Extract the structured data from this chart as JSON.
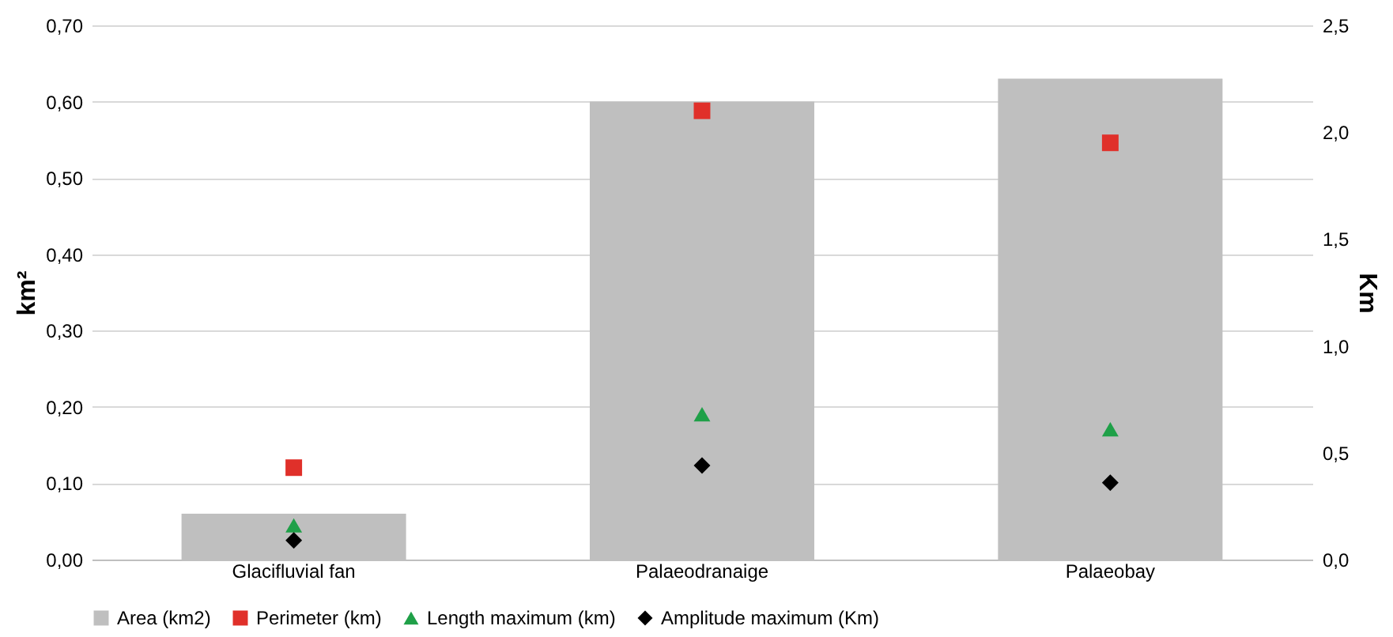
{
  "chart_data": {
    "type": "bar",
    "categories": [
      "Glacifluvial fan",
      "Palaeodranaige",
      "Palaeobay"
    ],
    "ylabel": "km²",
    "y2label": "Km",
    "series": [
      {
        "name": "Area (km2)",
        "type": "bar",
        "color": "#bfbfbf",
        "values": [
          0.06,
          0.6,
          0.63
        ]
      },
      {
        "name": "Perimeter (km)",
        "type": "scatter",
        "axis": "y2",
        "marker": "square",
        "color": "#e0302a",
        "values": [
          0.43,
          2.1,
          1.95
        ]
      },
      {
        "name": "Length maximum (km)",
        "type": "scatter",
        "axis": "y2",
        "marker": "triangle",
        "color": "#1fa048",
        "values": [
          0.16,
          0.68,
          0.61
        ]
      },
      {
        "name": "Amplitude maximum (Km)",
        "type": "scatter",
        "axis": "y2",
        "marker": "diamond",
        "color": "#000000",
        "values": [
          0.09,
          0.44,
          0.36
        ]
      }
    ],
    "ylim": [
      0,
      0.7
    ],
    "yticks": [
      {
        "value": 0,
        "label": "0,00"
      },
      {
        "value": 0.1,
        "label": "0,10"
      },
      {
        "value": 0.2,
        "label": "0,20"
      },
      {
        "value": 0.3,
        "label": "0,30"
      },
      {
        "value": 0.4,
        "label": "0,40"
      },
      {
        "value": 0.5,
        "label": "0,50"
      },
      {
        "value": 0.6,
        "label": "0,60"
      },
      {
        "value": 0.7,
        "label": "0,70"
      }
    ],
    "y2lim": [
      0,
      2.5
    ],
    "y2ticks": [
      {
        "value": 0,
        "label": "0,0"
      },
      {
        "value": 0.5,
        "label": "0,5"
      },
      {
        "value": 1,
        "label": "1,0"
      },
      {
        "value": 1.5,
        "label": "1,5"
      },
      {
        "value": 2,
        "label": "2,0"
      },
      {
        "value": 2.5,
        "label": "2,5"
      }
    ],
    "grid": "y",
    "legend": "bottom"
  }
}
